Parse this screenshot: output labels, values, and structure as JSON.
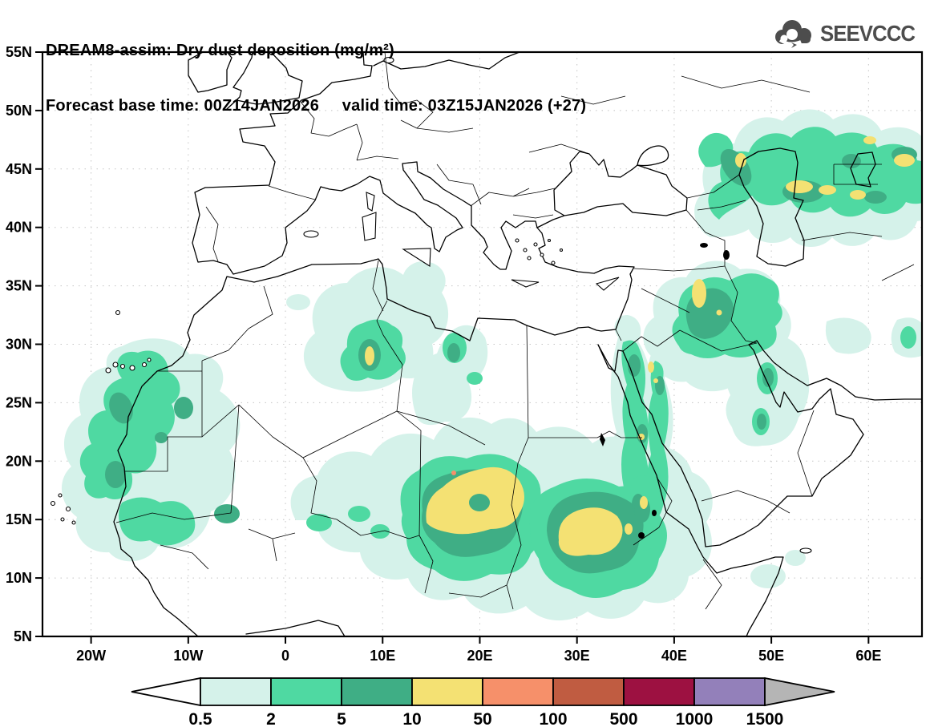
{
  "header": {
    "title_line1": "DREAM8-assim: Dry dust deposition (mg/m²)",
    "title_line2": "Forecast base time: 00Z14JAN2026     valid time: 03Z15JAN2026 (+27)",
    "model": "DREAM8-assim",
    "variable": "Dry dust deposition",
    "units": "mg/m²",
    "forecast_base_time": "00Z14JAN2026",
    "valid_time": "03Z15JAN2026",
    "forecast_hour": "+27"
  },
  "logo": {
    "text": "SEEVCCC",
    "color": "#4d4d4d",
    "icon": "cloud-arrow"
  },
  "map": {
    "projection": "equirectangular",
    "lon_range": [
      -25,
      65.5
    ],
    "lat_range": [
      5,
      55
    ],
    "lon_tick_values": [
      -20,
      -10,
      0,
      10,
      20,
      30,
      40,
      50,
      60
    ],
    "lon_tick_labels": [
      "20W",
      "10W",
      "0",
      "10E",
      "20E",
      "30E",
      "40E",
      "50E",
      "60E"
    ],
    "lat_tick_values": [
      55,
      50,
      45,
      40,
      35,
      30,
      25,
      20,
      15,
      10,
      5
    ],
    "lat_tick_labels": [
      "55N",
      "50N",
      "45N",
      "40N",
      "35N",
      "30N",
      "25N",
      "20N",
      "15N",
      "10N",
      "5N"
    ],
    "grid_lat_step_deg": 5,
    "grid_lon_step_deg": 10
  },
  "colorbar": {
    "units": "mg/m²",
    "levels": [
      "0.5",
      "2",
      "5",
      "10",
      "50",
      "100",
      "500",
      "1000",
      "1500"
    ],
    "band_colors": [
      "#d5f2ea",
      "#4fd9a2",
      "#3fae85",
      "#f4e173",
      "#f6906a",
      "#c05c41",
      "#9d1141",
      "#9380ba"
    ],
    "below_min_color": "#ffffff",
    "above_max_color": "#b5b5b5"
  },
  "dust_pattern_summary": [
    {
      "region": "West Africa coast (Mauritania/W. Sahara/Senegal)",
      "approx_center_lon_lat": [
        -14,
        20
      ],
      "peak_band_mg_m2": "5-10"
    },
    {
      "region": "Central Algeria",
      "approx_center_lon_lat": [
        9,
        29
      ],
      "peak_band_mg_m2": "10-50"
    },
    {
      "region": "Chad/Sahel",
      "approx_center_lon_lat": [
        19,
        17
      ],
      "peak_band_mg_m2": "10-50 (spot 50-100)"
    },
    {
      "region": "Sudan",
      "approx_center_lon_lat": [
        30,
        13.5
      ],
      "peak_band_mg_m2": "10-50"
    },
    {
      "region": "Red Sea coasts / Nile",
      "approx_center_lon_lat": [
        36,
        22
      ],
      "peak_band_mg_m2": "10-50 spots"
    },
    {
      "region": "Eritrea/Ethiopia border",
      "approx_center_lon_lat": [
        37,
        15
      ],
      "peak_band_mg_m2": "10-50"
    },
    {
      "region": "Mesopotamia (Iraq/Syria)",
      "approx_center_lon_lat": [
        43,
        34.5
      ],
      "peak_band_mg_m2": "10-50"
    },
    {
      "region": "Persian Gulf west coast",
      "approx_center_lon_lat": [
        50,
        26
      ],
      "peak_band_mg_m2": "5-10"
    },
    {
      "region": "Caspian / Central Asia",
      "approx_center_lon_lat": [
        52,
        43
      ],
      "peak_band_mg_m2": "10-50"
    },
    {
      "region": "Pakistan coast (right edge)",
      "approx_center_lon_lat": [
        64,
        27
      ],
      "peak_band_mg_m2": "2-5"
    }
  ]
}
